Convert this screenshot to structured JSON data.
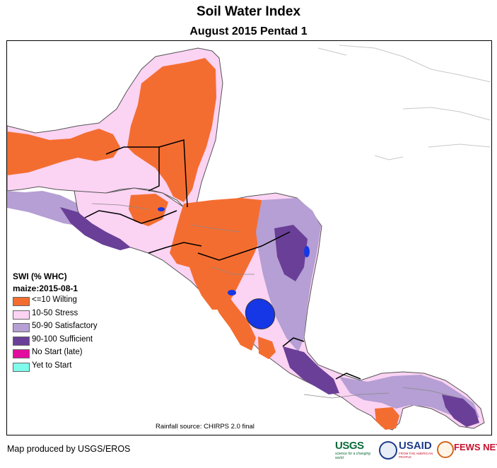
{
  "title": "Soil Water Index",
  "subtitle": "August 2015 Pentad 1",
  "legend": {
    "title": "SWI (% WHC)",
    "subtitle": "maize:2015-08-1",
    "items": [
      {
        "label": "<=10 Wilting",
        "color": "#f46d30"
      },
      {
        "label": "10-50 Stress",
        "color": "#fbd3f3"
      },
      {
        "label": "50-90 Satisfactory",
        "color": "#b59fd4"
      },
      {
        "label": "90-100 Sufficient",
        "color": "#6a3f97"
      },
      {
        "label": "No Start (late)",
        "color": "#e20d9e"
      },
      {
        "label": "Yet to Start",
        "color": "#7ffbec"
      }
    ]
  },
  "water_color": "#1537e6",
  "source_note": "Rainfall source: CHIRPS 2.0 final",
  "credit": "Map produced by USGS/EROS",
  "logos": {
    "usgs": "USGS",
    "usgs_tagline": "science for a changing world",
    "usaid": "USAID",
    "usaid_tagline": "FROM THE AMERICAN PEOPLE",
    "fews": "FEWS NET"
  }
}
